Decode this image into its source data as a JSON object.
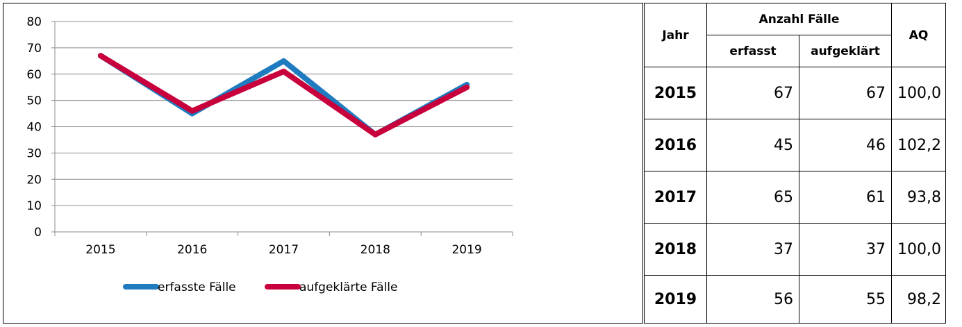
{
  "chart_data": {
    "type": "line",
    "title": "",
    "xlabel": "",
    "ylabel": "",
    "categories": [
      "2015",
      "2016",
      "2017",
      "2018",
      "2019"
    ],
    "ylim": [
      0,
      80
    ],
    "yticks": [
      "0",
      "10",
      "20",
      "30",
      "40",
      "50",
      "60",
      "70",
      "80"
    ],
    "grid": true,
    "legend_position": "bottom",
    "series": [
      {
        "name": "erfasste Fälle",
        "color": "#1f7bbf",
        "values": [
          67,
          45,
          65,
          37,
          56
        ]
      },
      {
        "name": "aufgeklärte Fälle",
        "color": "#c8003c",
        "values": [
          67,
          46,
          61,
          37,
          55
        ]
      }
    ]
  },
  "table": {
    "header": {
      "jahr": "Jahr",
      "anzahl": "Anzahl Fälle",
      "erfasst": "erfasst",
      "aufgeklaert": "aufgeklärt",
      "aq": "AQ"
    },
    "rows": [
      {
        "jahr": "2015",
        "erfasst": "67",
        "aufgeklaert": "67",
        "aq": "100,0"
      },
      {
        "jahr": "2016",
        "erfasst": "45",
        "aufgeklaert": "46",
        "aq": "102,2"
      },
      {
        "jahr": "2017",
        "erfasst": "65",
        "aufgeklaert": "61",
        "aq": "93,8"
      },
      {
        "jahr": "2018",
        "erfasst": "37",
        "aufgeklaert": "37",
        "aq": "100,0"
      },
      {
        "jahr": "2019",
        "erfasst": "56",
        "aufgeklaert": "55",
        "aq": "98,2"
      }
    ]
  }
}
